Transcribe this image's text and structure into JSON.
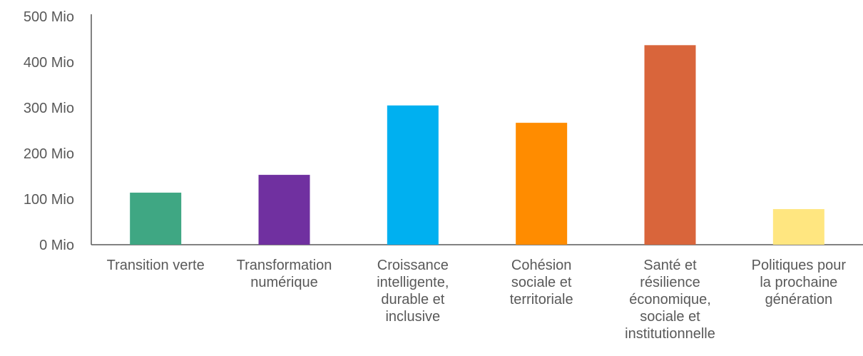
{
  "chart_data": {
    "type": "bar",
    "title": "",
    "xlabel": "",
    "ylabel": "",
    "ylim": [
      0,
      500
    ],
    "y_ticks": [
      0,
      100,
      200,
      300,
      400,
      500
    ],
    "y_tick_labels": [
      "0 Mio",
      "100 Mio",
      "200 Mio",
      "300 Mio",
      "400 Mio",
      "500 Mio"
    ],
    "grid": false,
    "legend": "none",
    "categories": [
      [
        "Transition verte"
      ],
      [
        "Transformation",
        "numérique"
      ],
      [
        "Croissance",
        "intelligente,",
        "durable et",
        "inclusive"
      ],
      [
        "Cohésion",
        "sociale et",
        "territoriale"
      ],
      [
        "Santé et",
        "résilience",
        "économique,",
        "sociale et",
        "institutionnelle"
      ],
      [
        "Politiques pour",
        "la prochaine",
        "génération"
      ]
    ],
    "values": [
      114,
      153,
      305,
      267,
      437,
      78
    ],
    "colors": [
      "#3FA783",
      "#7030A0",
      "#00B0F0",
      "#FF8C00",
      "#D9653B",
      "#FFE680"
    ]
  }
}
